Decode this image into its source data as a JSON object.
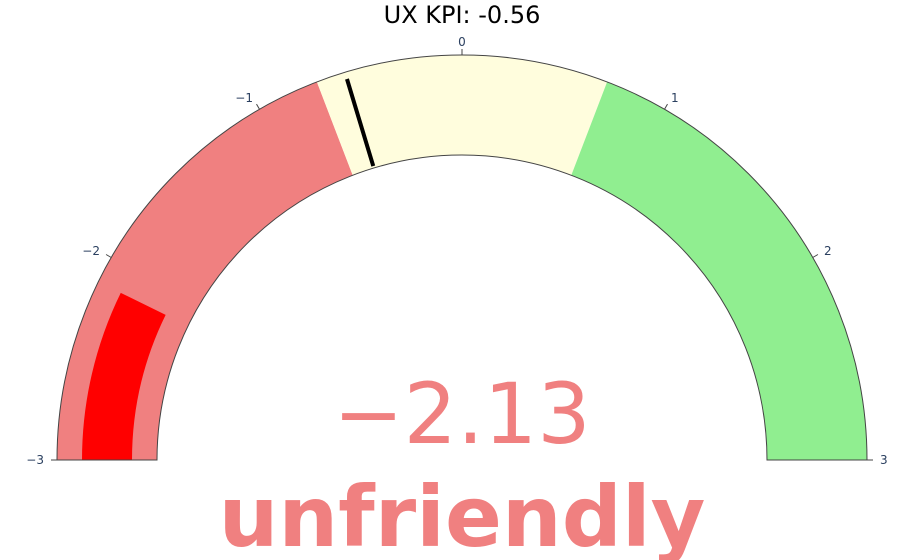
{
  "chart_data": {
    "type": "gauge",
    "title": "UX KPI: -0.56",
    "range": [
      -3,
      3
    ],
    "ticks": [
      {
        "value": -3,
        "label": "−3"
      },
      {
        "value": -2,
        "label": "−2"
      },
      {
        "value": -1,
        "label": "−1"
      },
      {
        "value": 0,
        "label": "0"
      },
      {
        "value": 1,
        "label": "1"
      },
      {
        "value": 2,
        "label": "2"
      },
      {
        "value": 3,
        "label": "3"
      }
    ],
    "steps": [
      {
        "range": [
          -3,
          -0.7
        ],
        "color": "#f08080"
      },
      {
        "range": [
          -0.7,
          0.7
        ],
        "color": "#fffddd"
      },
      {
        "range": [
          0.7,
          3
        ],
        "color": "#90ee90"
      }
    ],
    "bar": {
      "value": -2.13,
      "color": "#ff0000"
    },
    "threshold": {
      "value": -0.56,
      "color": "#000000"
    },
    "value_display": "−2.13",
    "value_color": "#f08080",
    "label": "unfriendly",
    "label_color": "#f08080"
  }
}
